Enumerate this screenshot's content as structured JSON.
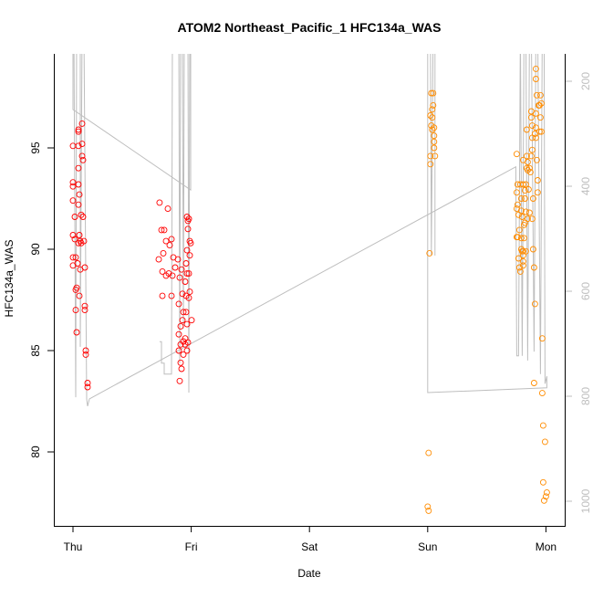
{
  "chart_data": {
    "type": "scatter",
    "title": "ATOM2 Northeast_Pacific_1 HFC134a_WAS",
    "xlabel": "Date",
    "ylabel": "HFC134a_WAS",
    "x_ticks": [
      "Thu",
      "Fri",
      "Sat",
      "Sun",
      "Mon"
    ],
    "y_ticks": [
      80,
      85,
      90,
      95
    ],
    "ylim": [
      76.3,
      99.6
    ],
    "right_axis": {
      "ticks": [
        200,
        400,
        600,
        800,
        1000
      ],
      "reversed": true,
      "ylim": [
        1046,
        150
      ],
      "color": "#bebebe"
    },
    "grid": false,
    "series": [
      {
        "color": "#ff0000",
        "marker": "open-circle",
        "points": [
          [
            "Thu 01:51",
            96.2
          ],
          [
            "Thu 01:07",
            95.9
          ],
          [
            "Thu 01:07",
            95.8
          ],
          [
            "Thu 00:00",
            95.1
          ],
          [
            "Thu 01:07",
            95.1
          ],
          [
            "Thu 01:51",
            95.2
          ],
          [
            "Thu 01:51",
            94.6
          ],
          [
            "Thu 02:02",
            94.4
          ],
          [
            "Thu 01:07",
            94.0
          ],
          [
            "Thu 00:00",
            93.3
          ],
          [
            "Thu 00:00",
            93.1
          ],
          [
            "Thu 01:07",
            93.2
          ],
          [
            "Thu 01:18",
            92.7
          ],
          [
            "Thu 00:00",
            92.4
          ],
          [
            "Thu 01:07",
            92.2
          ],
          [
            "Thu 01:40",
            91.7
          ],
          [
            "Thu 00:22",
            91.6
          ],
          [
            "Thu 02:02",
            91.6
          ],
          [
            "Thu 01:18",
            90.7
          ],
          [
            "Thu 00:00",
            90.7
          ],
          [
            "Thu 00:22",
            90.5
          ],
          [
            "Thu 01:29",
            90.4
          ],
          [
            "Thu 02:13",
            90.4
          ],
          [
            "Thu 01:07",
            90.3
          ],
          [
            "Thu 01:40",
            90.3
          ],
          [
            "Thu 00:00",
            89.6
          ],
          [
            "Thu 00:33",
            89.6
          ],
          [
            "Thu 00:56",
            89.3
          ],
          [
            "Thu 00:00",
            89.2
          ],
          [
            "Thu 02:24",
            89.1
          ],
          [
            "Thu 01:29",
            89.0
          ],
          [
            "Thu 00:44",
            88.1
          ],
          [
            "Thu 00:33",
            88.0
          ],
          [
            "Thu 01:18",
            87.7
          ],
          [
            "Thu 02:24",
            87.2
          ],
          [
            "Thu 00:33",
            87.0
          ],
          [
            "Thu 02:24",
            87.0
          ],
          [
            "Thu 00:44",
            85.9
          ],
          [
            "Thu 02:36",
            85.0
          ],
          [
            "Thu 02:36",
            84.8
          ],
          [
            "Thu 02:58",
            83.4
          ],
          [
            "Thu 02:58",
            83.2
          ],
          [
            "Thu 17:35",
            92.3
          ],
          [
            "Thu 19:16",
            92.0
          ],
          [
            "Thu 17:58",
            90.95
          ],
          [
            "Thu 18:31",
            90.95
          ],
          [
            "Thu 20:00",
            90.5
          ],
          [
            "Thu 18:53",
            90.4
          ],
          [
            "Thu 19:38",
            90.2
          ],
          [
            "Thu 17:24",
            89.5
          ],
          [
            "Thu 18:20",
            89.8
          ],
          [
            "Thu 20:22",
            89.6
          ],
          [
            "Thu 21:18",
            89.5
          ],
          [
            "Thu 18:09",
            88.9
          ],
          [
            "Thu 19:27",
            88.8
          ],
          [
            "Thu 18:53",
            88.7
          ],
          [
            "Thu 20:44",
            89.1
          ],
          [
            "Thu 18:09",
            87.7
          ],
          [
            "Thu 20:00",
            87.7
          ],
          [
            "Thu 20:11",
            88.7
          ],
          [
            "Thu 21:40",
            88.6
          ],
          [
            "Thu 23:09",
            91.6
          ],
          [
            "Thu 23:31",
            91.5
          ],
          [
            "Thu 23:20",
            91.4
          ],
          [
            "Thu 23:20",
            91.0
          ],
          [
            "Thu 23:42",
            90.4
          ],
          [
            "Thu 23:53",
            90.3
          ],
          [
            "Thu 23:09",
            89.95
          ],
          [
            "Thu 23:42",
            89.7
          ],
          [
            "Thu 22:58",
            89.3
          ],
          [
            "Thu 22:47",
            88.4
          ],
          [
            "Thu 23:09",
            88.8
          ],
          [
            "Thu 22:13",
            87.8
          ],
          [
            "Thu 22:58",
            87.7
          ],
          [
            "Thu 23:31",
            87.6
          ],
          [
            "Thu 21:29",
            87.3
          ],
          [
            "Thu 22:24",
            86.9
          ],
          [
            "Thu 22:58",
            86.9
          ],
          [
            "Thu 22:13",
            86.5
          ],
          [
            "Thu 21:51",
            86.2
          ],
          [
            "Thu 23:09",
            86.3
          ],
          [
            "Thu 21:29",
            85.8
          ],
          [
            "Thu 22:47",
            85.6
          ],
          [
            "Thu 22:24",
            85.45
          ],
          [
            "Thu 21:51",
            85.3
          ],
          [
            "Thu 22:47",
            85.3
          ],
          [
            "Thu 21:29",
            85.0
          ],
          [
            "Thu 23:09",
            85.0
          ],
          [
            "Thu 22:24",
            84.8
          ],
          [
            "Thu 21:51",
            84.4
          ],
          [
            "Thu 22:02",
            84.1
          ],
          [
            "Thu 21:40",
            83.5
          ],
          [
            "Thu 23:20",
            85.4
          ],
          [
            "Fri 00:04",
            86.5
          ],
          [
            "Thu 23:42",
            87.9
          ],
          [
            "Thu 22:02",
            89.0
          ],
          [
            "Thu 23:31",
            88.8
          ]
        ]
      },
      {
        "color": "#ff8c00",
        "marker": "open-circle",
        "points": [
          [
            "Sun 00:44",
            97.7
          ],
          [
            "Sun 01:07",
            97.7
          ],
          [
            "Sun 01:07",
            97.1
          ],
          [
            "Sun 00:56",
            96.9
          ],
          [
            "Sun 00:33",
            96.6
          ],
          [
            "Sun 00:56",
            96.5
          ],
          [
            "Sun 00:44",
            96.1
          ],
          [
            "Sun 00:56",
            95.9
          ],
          [
            "Sun 01:18",
            96.0
          ],
          [
            "Sun 01:18",
            95.6
          ],
          [
            "Sun 01:18",
            95.3
          ],
          [
            "Sun 01:18",
            95.0
          ],
          [
            "Sun 00:33",
            94.6
          ],
          [
            "Sun 01:29",
            94.6
          ],
          [
            "Sun 00:33",
            94.2
          ],
          [
            "Sun 00:22",
            89.8
          ],
          [
            "Sun 00:11",
            79.95
          ],
          [
            "Sun 00:00",
            77.3
          ],
          [
            "Sun 00:11",
            77.1
          ],
          [
            "Sun 21:58",
            98.9
          ],
          [
            "Sun 21:58",
            98.4
          ],
          [
            "Sun 22:09",
            97.6
          ],
          [
            "Sun 22:53",
            97.6
          ],
          [
            "Sun 22:31",
            97.1
          ],
          [
            "Sun 23:04",
            97.2
          ],
          [
            "Sun 22:42",
            97.1
          ],
          [
            "Sun 21:02",
            96.8
          ],
          [
            "Sun 21:02",
            96.5
          ],
          [
            "Sun 21:58",
            96.7
          ],
          [
            "Sun 22:53",
            96.5
          ],
          [
            "Sun 21:13",
            96.1
          ],
          [
            "Sun 21:58",
            96.0
          ],
          [
            "Sun 20:07",
            95.9
          ],
          [
            "Sun 22:42",
            95.8
          ],
          [
            "Sun 23:04",
            95.8
          ],
          [
            "Sun 21:47",
            95.7
          ],
          [
            "Sun 21:13",
            95.5
          ],
          [
            "Sun 21:58",
            95.5
          ],
          [
            "Sun 18:04",
            94.7
          ],
          [
            "Sun 21:13",
            94.9
          ],
          [
            "Sun 20:07",
            94.6
          ],
          [
            "Sun 21:02",
            94.6
          ],
          [
            "Sun 19:22",
            94.4
          ],
          [
            "Sun 22:09",
            94.4
          ],
          [
            "Sun 20:18",
            94.3
          ],
          [
            "Sun 20:07",
            94.0
          ],
          [
            "Sun 20:40",
            94.0
          ],
          [
            "Sun 20:18",
            93.9
          ],
          [
            "Sun 20:51",
            93.8
          ],
          [
            "Sun 22:20",
            93.4
          ],
          [
            "Sun 22:20",
            92.8
          ],
          [
            "Sun 18:16",
            93.2
          ],
          [
            "Sun 18:49",
            93.2
          ],
          [
            "Sun 19:22",
            93.2
          ],
          [
            "Sun 19:56",
            93.2
          ],
          [
            "Sun 20:29",
            92.95
          ],
          [
            "Sun 19:44",
            92.9
          ],
          [
            "Sun 18:04",
            92.8
          ],
          [
            "Sun 19:00",
            92.5
          ],
          [
            "Sun 19:44",
            92.5
          ],
          [
            "Sun 21:24",
            92.5
          ],
          [
            "Sun 18:16",
            92.2
          ],
          [
            "Sun 18:04",
            92.0
          ],
          [
            "Sun 19:00",
            91.9
          ],
          [
            "Sun 19:56",
            91.85
          ],
          [
            "Sun 20:40",
            91.8
          ],
          [
            "Sun 18:27",
            91.7
          ],
          [
            "Sun 19:11",
            91.6
          ],
          [
            "Sun 20:18",
            91.5
          ],
          [
            "Sun 21:13",
            91.5
          ],
          [
            "Sun 19:44",
            91.3
          ],
          [
            "Sun 19:33",
            91.2
          ],
          [
            "Sun 18:38",
            90.95
          ],
          [
            "Sun 18:04",
            90.6
          ],
          [
            "Sun 18:16",
            90.6
          ],
          [
            "Sun 19:00",
            90.55
          ],
          [
            "Sun 19:33",
            90.55
          ],
          [
            "Sun 21:24",
            90.0
          ],
          [
            "Sun 19:00",
            90.0
          ],
          [
            "Sun 19:11",
            89.9
          ],
          [
            "Sun 19:22",
            89.9
          ],
          [
            "Sun 19:56",
            89.9
          ],
          [
            "Sun 19:22",
            89.7
          ],
          [
            "Sun 18:27",
            89.55
          ],
          [
            "Sun 19:22",
            89.4
          ],
          [
            "Sun 18:38",
            89.1
          ],
          [
            "Sun 19:22",
            89.2
          ],
          [
            "Sun 21:36",
            89.1
          ],
          [
            "Sun 18:49",
            88.9
          ],
          [
            "Sun 21:47",
            87.3
          ],
          [
            "Sun 23:16",
            85.6
          ],
          [
            "Sun 21:36",
            83.4
          ],
          [
            "Sun 23:16",
            82.9
          ],
          [
            "Sun 23:27",
            81.3
          ],
          [
            "Sun 23:49",
            80.5
          ],
          [
            "Sun 23:27",
            78.5
          ],
          [
            "Mon 00:11",
            78.0
          ],
          [
            "Mon 00:00",
            77.8
          ],
          [
            "Sun 23:38",
            77.6
          ]
        ]
      }
    ],
    "pressure_track": [
      [
        [
          "Thu 00:00",
          100
        ],
        [
          "Thu 00:00",
          254
        ],
        [
          "Thu 23:53",
          407
        ],
        [
          "Thu 23:53",
          100
        ]
      ],
      [
        [
          "Thu 00:11",
          100
        ],
        [
          "Thu 00:33",
          802
        ],
        [
          "Thu 00:44",
          100
        ],
        [
          "Thu 01:29",
          100
        ],
        [
          "Thu 01:29",
          706
        ],
        [
          "Thu 01:51",
          100
        ],
        [
          "Thu 02:13",
          100
        ],
        [
          "Thu 02:47",
          805
        ],
        [
          "Thu 02:58",
          819
        ],
        [
          "Thu 03:20",
          805
        ],
        [
          "Sun 17:53",
          363
        ],
        [
          "Sun 18:04",
          723
        ],
        [
          "Sun 18:27",
          723
        ],
        [
          "Sun 18:49",
          100
        ],
        [
          "Sun 19:11",
          723
        ],
        [
          "Sun 19:33",
          100
        ],
        [
          "Sun 19:56",
          100
        ],
        [
          "Sun 20:18",
          732
        ],
        [
          "Sun 20:40",
          100
        ],
        [
          "Sun 21:02",
          100
        ],
        [
          "Sun 21:36",
          715
        ],
        [
          "Sun 21:58",
          100
        ],
        [
          "Sun 22:20",
          100
        ],
        [
          "Sun 22:53",
          758
        ],
        [
          "Sun 23:16",
          100
        ],
        [
          "Sun 23:38",
          100
        ],
        [
          "Sun 23:49",
          776
        ],
        [
          "Mon 00:11",
          762
        ],
        [
          "Mon 00:11",
          784
        ],
        [
          "Sun 00:00",
          793
        ],
        [
          "Sun 00:00",
          100
        ]
      ],
      [
        [
          "Sun 00:33",
          100
        ],
        [
          "Sun 00:44",
          532
        ],
        [
          "Sun 01:07",
          100
        ],
        [
          "Sun 01:29",
          100
        ],
        [
          "Sun 01:29",
          532
        ]
      ],
      [
        [
          "Thu 17:35",
          696
        ],
        [
          "Thu 17:58",
          696
        ],
        [
          "Thu 17:58",
          737
        ],
        [
          "Thu 18:31",
          737
        ],
        [
          "Thu 18:31",
          758
        ],
        [
          "Thu 20:00",
          758
        ],
        [
          "Thu 20:11",
          100
        ],
        [
          "Thu 21:29",
          100
        ],
        [
          "Thu 21:40",
          737
        ],
        [
          "Thu 21:51",
          100
        ],
        [
          "Thu 22:13",
          100
        ],
        [
          "Thu 22:24",
          671
        ],
        [
          "Thu 22:36",
          100
        ],
        [
          "Thu 23:20",
          100
        ],
        [
          "Thu 23:31",
          793
        ],
        [
          "Thu 23:42",
          100
        ]
      ]
    ]
  }
}
